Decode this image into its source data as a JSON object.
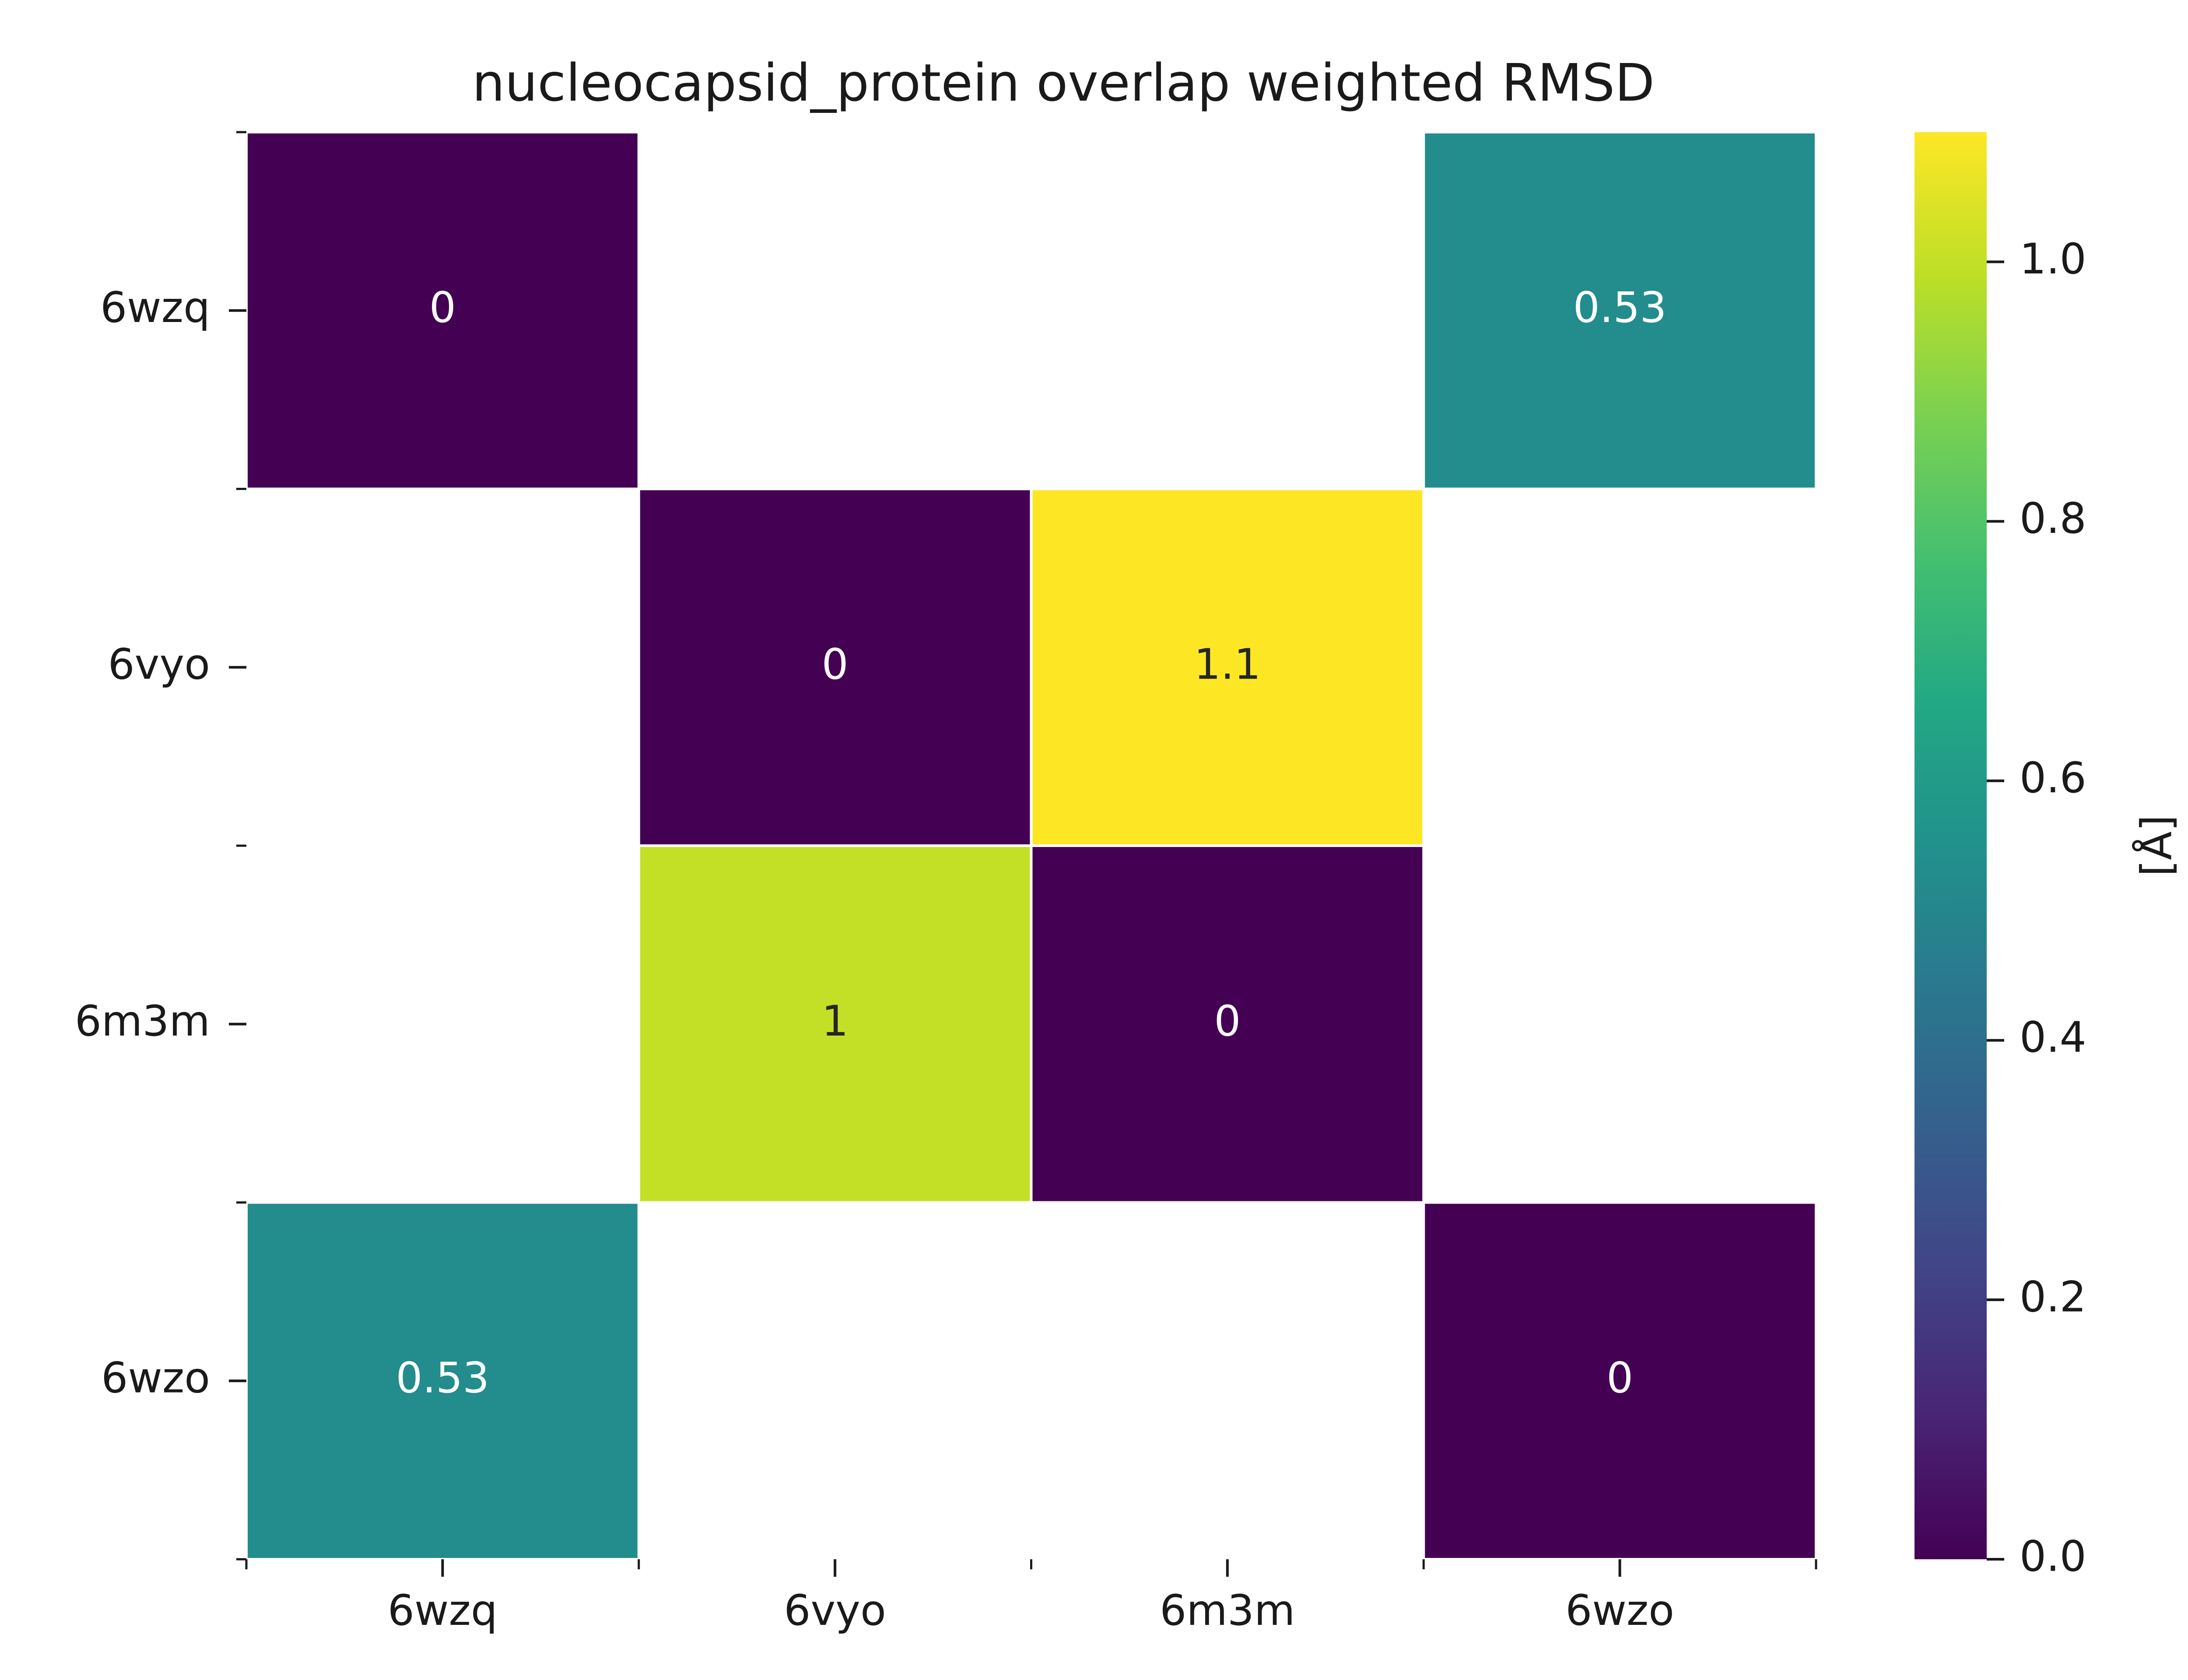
{
  "chart_data": {
    "type": "heatmap",
    "title": "nucleocapsid_protein overlap weighted RMSD",
    "x_categories": [
      "6wzq",
      "6vyo",
      "6m3m",
      "6wzo"
    ],
    "y_categories": [
      "6wzq",
      "6vyo",
      "6m3m",
      "6wzo"
    ],
    "values": [
      [
        0,
        null,
        null,
        0.53
      ],
      [
        null,
        0,
        1.1,
        null
      ],
      [
        null,
        1.0,
        0,
        null
      ],
      [
        0.53,
        null,
        null,
        0
      ]
    ],
    "cell_labels": [
      [
        "0",
        "",
        "",
        "0.53"
      ],
      [
        "",
        "0",
        "1.1",
        ""
      ],
      [
        "",
        "1",
        "0",
        ""
      ],
      [
        "0.53",
        "",
        "",
        "0"
      ]
    ],
    "colorbar": {
      "label": "[Å]",
      "colormap": "viridis",
      "range": [
        0.0,
        1.1
      ],
      "ticks": [
        0.0,
        0.2,
        0.4,
        0.6,
        0.8,
        1.0
      ],
      "tick_labels": [
        "0.0",
        "0.2",
        "0.4",
        "0.6",
        "0.8",
        "1.0"
      ]
    },
    "colors": {
      "zero": "#440154",
      "mid_053": "#218b8e",
      "one": "#d1e11c",
      "max": "#fde725"
    },
    "grid": false
  }
}
